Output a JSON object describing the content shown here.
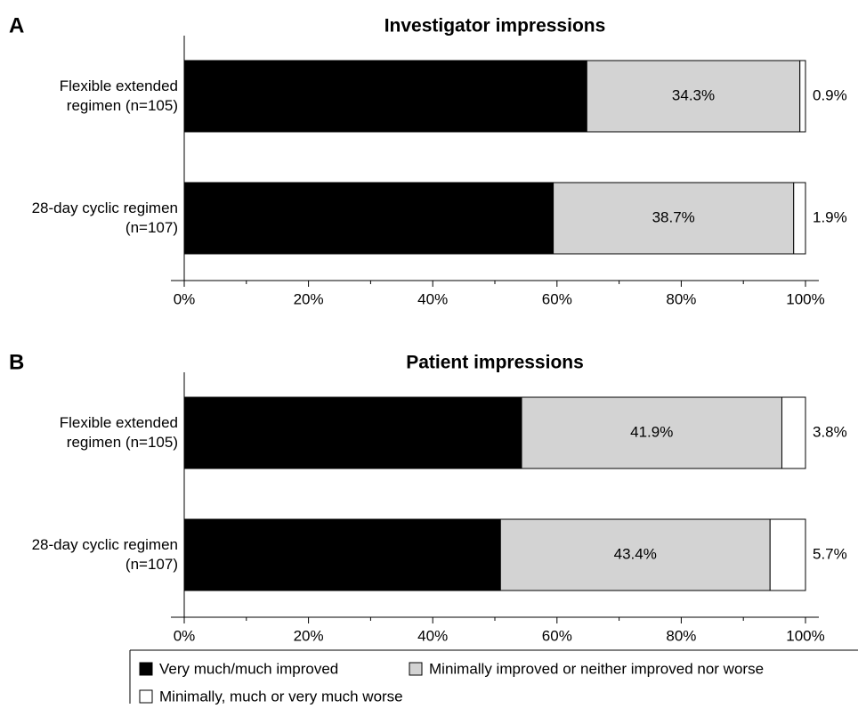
{
  "chart_data": [
    {
      "type": "bar",
      "orientation": "horizontal",
      "stacked": true,
      "panel": "A",
      "title": "Investigator impressions",
      "categories": [
        "Flexible extended regimen (n=105)",
        "28-day cyclic regimen (n=107)"
      ],
      "series": [
        {
          "name": "Very much/much improved",
          "color": "#000000",
          "values": [
            64.8,
            59.4
          ],
          "value_labels": [
            "64.8%",
            "59.4%"
          ]
        },
        {
          "name": "Minimally improved or neither improved nor worse",
          "color": "#d3d3d3",
          "values": [
            34.3,
            38.7
          ],
          "value_labels": [
            "34.3%",
            "38.7%"
          ]
        },
        {
          "name": "Minimally, much or very much worse",
          "color": "#ffffff",
          "values": [
            0.9,
            1.9
          ],
          "value_labels": [
            "0.9%",
            "1.9%"
          ]
        }
      ],
      "xlim": [
        0,
        100
      ],
      "xticks": [
        {
          "value": 0,
          "label": "0%"
        },
        {
          "value": 20,
          "label": "20%"
        },
        {
          "value": 40,
          "label": "40%"
        },
        {
          "value": 60,
          "label": "60%"
        },
        {
          "value": 80,
          "label": "80%"
        },
        {
          "value": 100,
          "label": "100%"
        }
      ]
    },
    {
      "type": "bar",
      "orientation": "horizontal",
      "stacked": true,
      "panel": "B",
      "title": "Patient impressions",
      "categories": [
        "Flexible extended regimen (n=105)",
        "28-day cyclic regimen (n=107)"
      ],
      "series": [
        {
          "color": "#000000",
          "values": [
            54.3,
            50.9
          ],
          "value_labels": [
            "54.3%",
            "50.9%"
          ]
        },
        {
          "color": "#d3d3d3",
          "values": [
            41.9,
            43.4
          ],
          "value_labels": [
            "41.9%",
            "43.4%"
          ]
        },
        {
          "color": "#ffffff",
          "values": [
            3.8,
            5.7
          ],
          "value_labels": [
            "3.8%",
            "5.7%"
          ]
        }
      ],
      "xlim": [
        0,
        100
      ],
      "xticks": [
        {
          "value": 0,
          "label": "0%"
        },
        {
          "value": 20,
          "label": "20%"
        },
        {
          "value": 40,
          "label": "40%"
        },
        {
          "value": 60,
          "label": "60%"
        },
        {
          "value": 80,
          "label": "80%"
        },
        {
          "value": 100,
          "label": "100%"
        }
      ]
    }
  ]
}
